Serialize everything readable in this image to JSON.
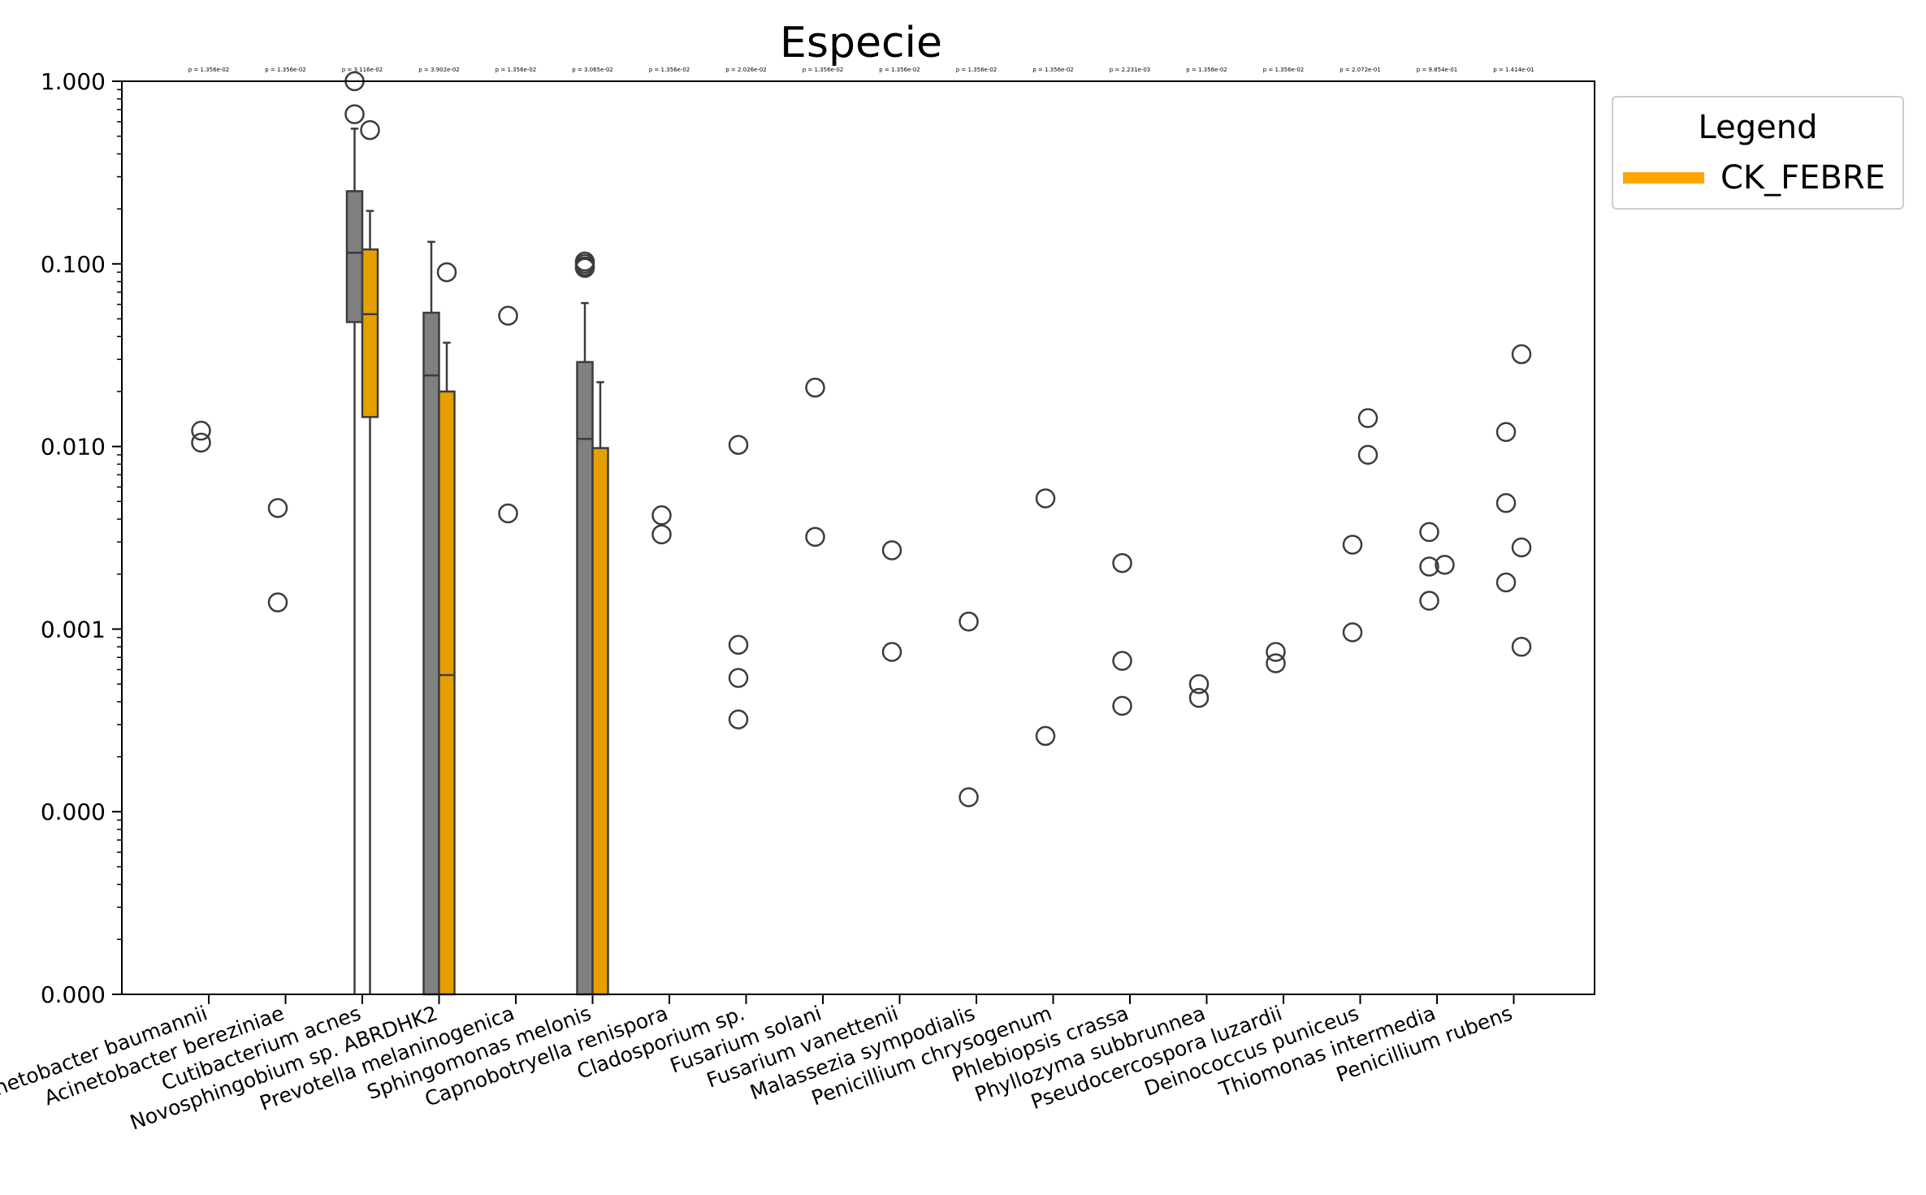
{
  "chart_data": {
    "type": "box",
    "title": "Especie",
    "xlabel": "",
    "ylabel": "",
    "yscale": "log",
    "ylim": [
      1e-05,
      1.0
    ],
    "ytick_values": [
      1e-05,
      0.0001,
      0.001,
      0.01,
      0.1,
      1.0
    ],
    "ytick_labels": [
      "0.000",
      "0.000",
      "0.001",
      "0.010",
      "0.100",
      "1.000"
    ],
    "grid": false,
    "legend": {
      "title": "Legend",
      "position": "outside-top-right",
      "entries": [
        {
          "label": "CK_FEBRE",
          "color": "#ffa500"
        }
      ]
    },
    "colors": {
      "group_a": "#808080",
      "group_b": "#e69f00",
      "outline": "#3c3c3c"
    },
    "categories": [
      "Acinetobacter baumannii",
      "Acinetobacter bereziniae",
      "Cutibacterium acnes",
      "Novosphingobium sp. ABRDHK2",
      "Prevotella melaninogenica",
      "Sphingomonas melonis",
      "Capnobotryella renispora",
      "Cladosporium sp.",
      "Fusarium solani",
      "Fusarium vanettenii",
      "Malassezia sympodialis",
      "Penicillium chrysogenum",
      "Phlebiopsis crassa",
      "Phyllozyma subbrunnea",
      "Pseudocercospora luzardii",
      "Deinococcus puniceus",
      "Thiomonas intermedia",
      "Penicillium rubens"
    ],
    "p_values": [
      "p = 1.356e-02",
      "p = 1.356e-02",
      "p = 3.116e-02",
      "p = 3.902e-02",
      "p = 1.356e-02",
      "p = 3.065e-02",
      "p = 1.356e-02",
      "p = 2.026e-02",
      "p = 1.356e-02",
      "p = 1.356e-02",
      "p = 1.356e-02",
      "p = 1.356e-02",
      "p = 2.231e-03",
      "p = 1.356e-02",
      "p = 1.356e-02",
      "p = 2.072e-01",
      "p = 9.854e-01",
      "p = 1.414e-01"
    ],
    "boxes": [
      {
        "category": "Cutibacterium acnes",
        "group": "a",
        "q1": 0.048,
        "median": 0.115,
        "q3": 0.25,
        "whisker_low": 1e-05,
        "whisker_high": 0.55
      },
      {
        "category": "Cutibacterium acnes",
        "group": "b",
        "q1": 0.0145,
        "median": 0.053,
        "q3": 0.12,
        "whisker_low": 1e-05,
        "whisker_high": 0.195
      },
      {
        "category": "Novosphingobium sp. ABRDHK2",
        "group": "a",
        "q1": 1e-05,
        "median": 0.0245,
        "q3": 0.054,
        "whisker_low": 1e-05,
        "whisker_high": 0.132
      },
      {
        "category": "Novosphingobium sp. ABRDHK2",
        "group": "b",
        "q1": 1e-05,
        "median": 0.00056,
        "q3": 0.02,
        "whisker_low": 1e-05,
        "whisker_high": 0.037
      },
      {
        "category": "Sphingomonas melonis",
        "group": "a",
        "q1": 1e-05,
        "median": 0.011,
        "q3": 0.029,
        "whisker_low": 1e-05,
        "whisker_high": 0.061
      },
      {
        "category": "Sphingomonas melonis",
        "group": "b",
        "q1": 1e-05,
        "median": 1e-05,
        "q3": 0.0098,
        "whisker_low": 1e-05,
        "whisker_high": 0.0225
      }
    ],
    "points": [
      {
        "category": "Acinetobacter baumannii",
        "group": "a",
        "values": [
          0.0122,
          0.0105
        ]
      },
      {
        "category": "Acinetobacter bereziniae",
        "group": "a",
        "values": [
          0.0046,
          0.0014
        ]
      },
      {
        "category": "Cutibacterium acnes",
        "group": "a",
        "values": [
          1.0,
          0.66
        ]
      },
      {
        "category": "Cutibacterium acnes",
        "group": "b",
        "values": [
          0.54
        ]
      },
      {
        "category": "Novosphingobium sp. ABRDHK2",
        "group": "b",
        "values": [
          0.09
        ]
      },
      {
        "category": "Prevotella melaninogenica",
        "group": "a",
        "values": [
          0.052,
          0.0043
        ]
      },
      {
        "category": "Sphingomonas melonis",
        "group": "a",
        "values": [
          0.103,
          0.1,
          0.097,
          0.095
        ]
      },
      {
        "category": "Capnobotryella renispora",
        "group": "a",
        "values": [
          0.0042,
          0.0033
        ]
      },
      {
        "category": "Cladosporium sp.",
        "group": "a",
        "values": [
          0.0102,
          0.00082,
          0.00054,
          0.00032
        ]
      },
      {
        "category": "Fusarium solani",
        "group": "a",
        "values": [
          0.021,
          0.0032
        ]
      },
      {
        "category": "Fusarium vanettenii",
        "group": "a",
        "values": [
          0.0027,
          0.00075
        ]
      },
      {
        "category": "Malassezia sympodialis",
        "group": "a",
        "values": [
          0.0011,
          0.00012
        ]
      },
      {
        "category": "Penicillium chrysogenum",
        "group": "a",
        "values": [
          0.0052,
          0.00026
        ]
      },
      {
        "category": "Phlebiopsis crassa",
        "group": "a",
        "values": [
          0.0023,
          0.00067,
          0.00038
        ]
      },
      {
        "category": "Phyllozyma subbrunnea",
        "group": "a",
        "values": [
          0.0005,
          0.00042
        ]
      },
      {
        "category": "Pseudocercospora luzardii",
        "group": "a",
        "values": [
          0.00075,
          0.00065
        ]
      },
      {
        "category": "Deinococcus puniceus",
        "group": "a",
        "values": [
          0.0029,
          0.00096
        ]
      },
      {
        "category": "Deinococcus puniceus",
        "group": "b",
        "values": [
          0.0143,
          0.009
        ]
      },
      {
        "category": "Thiomonas intermedia",
        "group": "a",
        "values": [
          0.0034,
          0.0022,
          0.00143
        ]
      },
      {
        "category": "Thiomonas intermedia",
        "group": "b",
        "values": [
          0.00225
        ]
      },
      {
        "category": "Penicillium rubens",
        "group": "a",
        "values": [
          0.012,
          0.0049,
          0.0018
        ]
      },
      {
        "category": "Penicillium rubens",
        "group": "b",
        "values": [
          0.032,
          0.0028,
          0.0008
        ]
      }
    ]
  }
}
